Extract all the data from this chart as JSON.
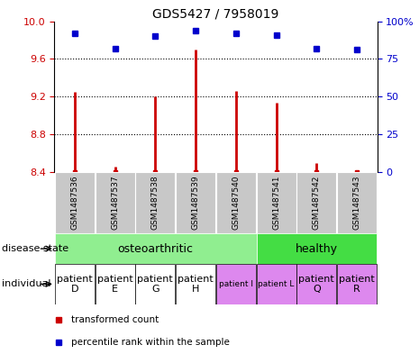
{
  "title": "GDS5427 / 7958019",
  "samples": [
    "GSM1487536",
    "GSM1487537",
    "GSM1487538",
    "GSM1487539",
    "GSM1487540",
    "GSM1487541",
    "GSM1487542",
    "GSM1487543"
  ],
  "transformed_count": [
    9.25,
    8.45,
    9.2,
    9.7,
    9.26,
    9.13,
    8.49,
    8.42
  ],
  "percentile_rank": [
    92,
    82,
    90,
    94,
    92,
    91,
    82,
    81
  ],
  "ylim": [
    8.4,
    10.0
  ],
  "yticks_left": [
    8.4,
    8.8,
    9.2,
    9.6,
    10.0
  ],
  "yticks_right": [
    0,
    25,
    50,
    75,
    100
  ],
  "individual": [
    "patient\nD",
    "patient\nE",
    "patient\nG",
    "patient\nH",
    "patient I",
    "patient L",
    "patient\nQ",
    "patient\nR"
  ],
  "individual_fontsize": [
    8,
    8,
    8,
    8,
    6.5,
    6.5,
    8,
    8
  ],
  "bar_color": "#CC0000",
  "dot_color": "#0000CC",
  "tick_color_left": "#CC0000",
  "tick_color_right": "#0000CC",
  "bg_color_samples": "#C8C8C8",
  "oa_color": "#90EE90",
  "healthy_color": "#44DD44",
  "indiv_colors_white": [
    "#ffffff",
    "#ffffff",
    "#ffffff",
    "#ffffff"
  ],
  "indiv_colors_purple": [
    "#DD88EE",
    "#DD88EE",
    "#DD88EE",
    "#DD88EE"
  ],
  "grid_levels": [
    8.8,
    9.2,
    9.6
  ]
}
